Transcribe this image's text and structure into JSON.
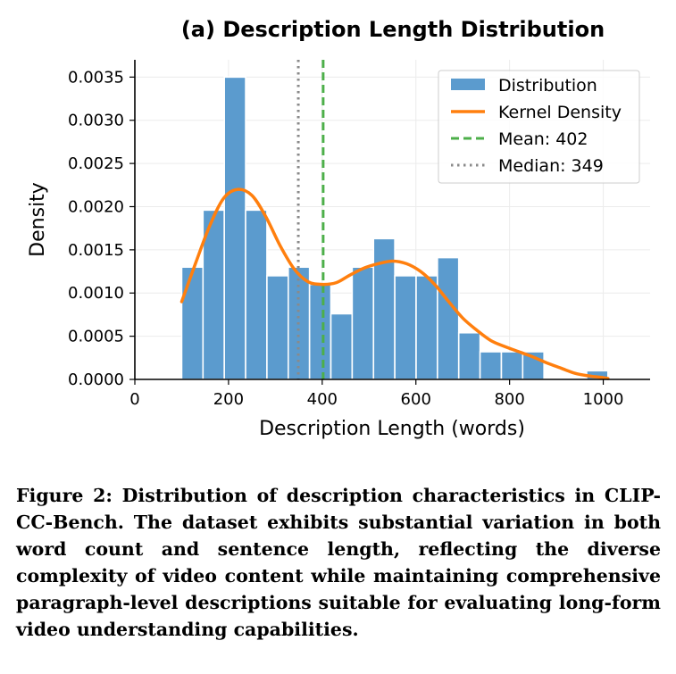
{
  "chart_data": {
    "type": "bar",
    "title": "(a) Description Length Distribution",
    "xlabel": "Description Length (words)",
    "ylabel": "Density",
    "xlim": [
      0,
      1100
    ],
    "ylim": [
      0,
      0.0037
    ],
    "xticks": [
      0,
      200,
      400,
      600,
      800,
      1000
    ],
    "yticks": [
      0,
      0.0005,
      0.001,
      0.0015,
      0.002,
      0.0025,
      0.003,
      0.0035
    ],
    "xtick_labels": [
      "0",
      "200",
      "400",
      "600",
      "800",
      "1000"
    ],
    "ytick_labels": [
      "0.0000",
      "0.0005",
      "0.0010",
      "0.0015",
      "0.0020",
      "0.0025",
      "0.0030",
      "0.0035"
    ],
    "grid": true,
    "legend_position": "top-right",
    "histogram": {
      "name": "Distribution",
      "color": "#5b9bce",
      "bin_edges": [
        100,
        145.5,
        191,
        236.5,
        282,
        327.5,
        373,
        418.5,
        464,
        509.5,
        555,
        600.5,
        646,
        691.5,
        737,
        782.5,
        828,
        873.5,
        919,
        964.5,
        1010
      ],
      "values": [
        0.0013,
        0.00196,
        0.0035,
        0.00196,
        0.0012,
        0.0013,
        0.0011,
        0.00076,
        0.0013,
        0.00163,
        0.0012,
        0.0012,
        0.00141,
        0.00054,
        0.00032,
        0.00032,
        0.00032,
        0,
        0,
        0.0001
      ]
    },
    "kde": {
      "name": "Kernel Density",
      "color": "#ff7f0e",
      "x": [
        100,
        130,
        160,
        190,
        220,
        250,
        280,
        310,
        340,
        370,
        400,
        430,
        460,
        490,
        520,
        550,
        580,
        610,
        640,
        670,
        700,
        730,
        760,
        790,
        820,
        850,
        880,
        910,
        940,
        970,
        1000,
        1010
      ],
      "y": [
        0.0009,
        0.00135,
        0.00178,
        0.0021,
        0.0022,
        0.00213,
        0.00188,
        0.00155,
        0.00128,
        0.00113,
        0.0011,
        0.00112,
        0.00121,
        0.00129,
        0.00134,
        0.00137,
        0.00134,
        0.00125,
        0.0011,
        0.0009,
        0.00071,
        0.00057,
        0.00045,
        0.00038,
        0.00032,
        0.00026,
        0.00019,
        0.00013,
        7e-05,
        4e-05,
        2e-05,
        1e-05
      ]
    },
    "mean": {
      "name": "Mean: 402",
      "value": 402,
      "color": "#4daf4a"
    },
    "median": {
      "name": "Median: 349",
      "value": 349,
      "color": "#8a8a8a"
    }
  },
  "caption": "Figure 2: Distribution of description characteristics in CLIP-CC-Bench. The dataset exhibits substantial variation in both word count and sentence length, reflecting the diverse complexity of video content while maintaining comprehensive paragraph-level descriptions suitable for evaluating long-form video understanding capabilities."
}
